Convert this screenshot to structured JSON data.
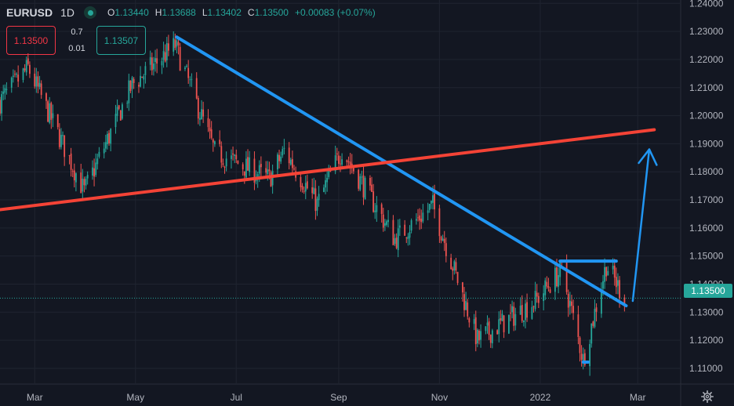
{
  "header": {
    "symbol": "EURUSD",
    "timeframe": "1D",
    "ohlc": [
      {
        "key": "O",
        "value": "1.13440"
      },
      {
        "key": "H",
        "value": "1.13688"
      },
      {
        "key": "L",
        "value": "1.13402"
      },
      {
        "key": "C",
        "value": "1.13500"
      }
    ],
    "change": "+0.00083 (+0.07%)"
  },
  "trade": {
    "sell_price": "1.13500",
    "buy_price": "1.13507",
    "spread_top": "0.7",
    "spread_bottom": "0.01"
  },
  "last_price_label": "1.13500",
  "colors": {
    "background": "#131722",
    "up": "#26a69a",
    "down": "#ef5350",
    "grid": "#1f2430",
    "axis_text": "#b2b5be",
    "trendline_blue": "#2196f3",
    "trendline_red": "#f44336"
  },
  "icons": {
    "settings": "gear-icon",
    "visibility": "eye-dot-icon"
  },
  "chart_data": {
    "type": "candlestick",
    "symbol": "EURUSD",
    "interval": "1D",
    "y_ticks": [
      "1.11000",
      "1.12000",
      "1.13000",
      "1.14000",
      "1.15000",
      "1.16000",
      "1.17000",
      "1.18000",
      "1.19000",
      "1.20000",
      "1.21000",
      "1.22000",
      "1.23000",
      "1.24000"
    ],
    "x_ticks": [
      "Mar",
      "May",
      "Jul",
      "Sep",
      "Nov",
      "2022",
      "Mar"
    ],
    "ylim": [
      1.1044,
      1.2412
    ],
    "x_range": [
      "2021-02-08",
      "2022-03-27"
    ],
    "grid": true,
    "approx_close_path": [
      {
        "date": "2021-02-08",
        "close": 1.205
      },
      {
        "date": "2021-02-25",
        "close": 1.217
      },
      {
        "date": "2021-03-31",
        "close": 1.173
      },
      {
        "date": "2021-04-29",
        "close": 1.211
      },
      {
        "date": "2021-05-25",
        "close": 1.225
      },
      {
        "date": "2021-06-18",
        "close": 1.187
      },
      {
        "date": "2021-07-21",
        "close": 1.1775
      },
      {
        "date": "2021-07-30",
        "close": 1.1875
      },
      {
        "date": "2021-08-19",
        "close": 1.1685
      },
      {
        "date": "2021-09-03",
        "close": 1.188
      },
      {
        "date": "2021-10-05",
        "close": 1.156
      },
      {
        "date": "2021-10-28",
        "close": 1.168
      },
      {
        "date": "2021-11-24",
        "close": 1.12
      },
      {
        "date": "2021-12-29",
        "close": 1.134
      },
      {
        "date": "2022-01-14",
        "close": 1.145
      },
      {
        "date": "2022-01-27",
        "close": 1.113
      },
      {
        "date": "2022-02-10",
        "close": 1.147
      },
      {
        "date": "2022-02-21",
        "close": 1.135
      }
    ],
    "trendlines": [
      {
        "name": "descending-trendline",
        "color": "#2196f3",
        "points": [
          {
            "date": "2021-05-26",
            "price": 1.228
          },
          {
            "date": "2022-02-22",
            "price": 1.1323
          }
        ]
      },
      {
        "name": "ascending-trendline",
        "color": "#f44336",
        "points": [
          {
            "date": "2021-02-08",
            "price": 1.1665
          },
          {
            "date": "2022-03-11",
            "price": 1.195
          }
        ]
      },
      {
        "name": "resistance-line",
        "color": "#2196f3",
        "points": [
          {
            "date": "2022-01-13",
            "price": 1.1482
          },
          {
            "date": "2022-02-16",
            "price": 1.1482
          }
        ]
      },
      {
        "name": "support-line",
        "color": "#2196f3",
        "points": [
          {
            "date": "2022-01-27",
            "price": 1.1122
          },
          {
            "date": "2022-01-30",
            "price": 1.1122
          }
        ]
      }
    ],
    "projection_arrow": {
      "color": "#2196f3",
      "from": {
        "date": "2022-02-26",
        "price": 1.134
      },
      "to": {
        "date": "2022-03-08",
        "price": 1.188
      }
    },
    "last_price": 1.135
  }
}
